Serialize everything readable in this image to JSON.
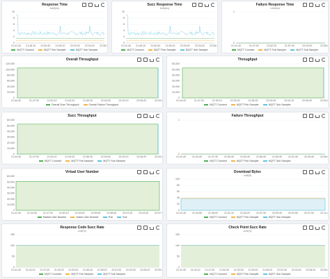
{
  "colors": {
    "connect": "#4caf50",
    "pub": "#f5b342",
    "sub": "#5cc4de",
    "fill_green": "#e3efd9",
    "fill_blue": "#dff1f7",
    "grid": "#eef0f2"
  },
  "toolbar_icons": [
    "maximize-icon",
    "restore-icon",
    "download-icon",
    "refresh-icon"
  ],
  "panels": {
    "response_time": {
      "title": "Response Time",
      "subtitle": "Unit(ms)",
      "yticks": [
        "10",
        "8",
        "6",
        "4",
        "2",
        "0"
      ],
      "xticks": [
        "21:41:40",
        "21:46:10",
        "21:50:40",
        "21:55:10",
        "22:00:00",
        "22:04:20",
        "22:08:10"
      ],
      "legend": [
        "MQTT Connect",
        "MQTT Pub Sampler",
        "MQTT Sub Sampler"
      ]
    },
    "succ_response_time": {
      "title": "Succ Response Time",
      "subtitle": "Unit(ms)",
      "yticks": [
        "10",
        "8",
        "6",
        "4",
        "2",
        "0"
      ],
      "xticks": [
        "21:41:40",
        "21:46:10",
        "21:50:40",
        "21:55:10",
        "22:00:00",
        "22:04:20",
        "22:08:10"
      ],
      "legend": [
        "MQTT Connect",
        "MQTT Pub Sampler",
        "MQTT Sub Sampler"
      ]
    },
    "failure_response_time": {
      "title": "Failure Response Time",
      "subtitle": "Unit(ms)",
      "yticks": [
        "1",
        "0"
      ],
      "xticks": [
        "21:41:40",
        "21:47:00",
        "21:52:20",
        "21:57:40",
        "22:03:00",
        "22:08:20"
      ],
      "legend": [
        "MQTT Connect",
        "MQTT Pub Sampler",
        "MQTT Sub Sampler"
      ]
    },
    "overall_throughput": {
      "title": "Overall Throughput",
      "yticks": [
        "120,000",
        "100,000",
        "80,000",
        "60,000",
        "40,000",
        "20,000",
        "0"
      ],
      "xticks": [
        "21:44:40",
        "21:47:00",
        "21:50:10",
        "21:53:20",
        "21:56:30",
        "22:00:00",
        "22:03:10",
        "22:06:20",
        "22:09:25"
      ],
      "legend": [
        "Overall Succ Throughput",
        "Overall Failure Throughput"
      ]
    },
    "throughput": {
      "title": "Throughput",
      "yticks": [
        "60,000",
        "50,000",
        "40,000",
        "30,000",
        "20,000",
        "10,000",
        "0"
      ],
      "xticks": [
        "21:44:40",
        "21:47:00",
        "21:50:10",
        "21:53:20",
        "21:56:30",
        "22:00:00",
        "22:03:10",
        "22:06:20",
        "22:09:25"
      ],
      "legend": [
        "MQTT Connect",
        "MQTT Pub Sampler",
        "MQTT Sub Sampler"
      ]
    },
    "succ_throughput": {
      "title": "Succ Throughput",
      "yticks": [
        "60,000",
        "50,000",
        "40,000",
        "30,000",
        "20,000",
        "10,000",
        "0"
      ],
      "xticks": [
        "21:44:40",
        "21:47:00",
        "21:50:10",
        "21:53:20",
        "21:56:30",
        "22:00:00",
        "22:03:10",
        "22:06:20",
        "22:09:25"
      ],
      "legend": [
        "MQTT Connect",
        "MQTT Pub Sampler",
        "MQTT Sub Sampler"
      ]
    },
    "failure_throughput": {
      "title": "Failure Throughput",
      "yticks": [
        "1",
        "0"
      ],
      "xticks": [
        "21:41:40",
        "21:44:40",
        "21:47:40",
        "21:50:40",
        "21:53:40",
        "21:56:40",
        "21:59:40",
        "22:02:40",
        "22:05:40",
        "22:08:40"
      ],
      "legend": [
        "MQTT Connect",
        "MQTT Pub Sampler",
        "MQTT Sub Sampler"
      ]
    },
    "virtual_user_number": {
      "title": "Virtual User Number",
      "yticks": [
        "60,000",
        "50,000",
        "40,000",
        "30,000",
        "20,000",
        "10,000",
        "0"
      ],
      "xticks": [
        "21:41:40",
        "21:44:30",
        "21:47:20",
        "21:50:10",
        "21:53:00",
        "21:55:50",
        "21:58:40",
        "22:01:30",
        "22:04:20",
        "22:07:10"
      ],
      "legend": [
        "Started User Number",
        "Active User Number",
        "Pub",
        "Sub"
      ]
    },
    "download_bytes": {
      "title": "Download Bytes",
      "subtitle": "Unit(B)",
      "yticks": [
        "100",
        "80",
        "60",
        "40",
        "20",
        "0"
      ],
      "xticks": [
        "21:41:40",
        "21:44:50",
        "21:48:00",
        "21:51:10",
        "21:54:20",
        "21:57:30",
        "22:00:40",
        "22:03:50",
        "22:07:00",
        "22:11:40"
      ],
      "legend": [
        "MQTT Connect",
        "MQTT Pub Sampler",
        "MQTT Sub Sampler"
      ]
    },
    "response_code_succ_rate": {
      "title": "Response Code Succ Rate",
      "subtitle": "Unit(%)",
      "yticks": [
        "150",
        "100",
        "50",
        "0"
      ],
      "xticks": [
        "21:41:40",
        "21:44:10",
        "21:47:40",
        "21:50:20",
        "21:53:00",
        "21:55:40",
        "21:58:20",
        "22:01:00",
        "22:03:40",
        "22:06:20",
        "22:09:40"
      ],
      "legend": [
        "MQTT Connect",
        "MQTT Pub Sampler",
        "MQTT Sub Sampler"
      ]
    },
    "check_point_succ_rate": {
      "title": "Check Point Succ Rate",
      "subtitle": "Unit(%)",
      "yticks": [
        "150",
        "100",
        "50",
        "0"
      ],
      "xticks": [
        "21:41:40",
        "21:44:10",
        "21:47:40",
        "21:50:20",
        "21:53:00",
        "21:55:40",
        "21:58:20",
        "22:01:00",
        "22:03:40",
        "22:06:20",
        "22:09:40"
      ],
      "legend": [
        "MQTT Connect",
        "MQTT Pub Sampler",
        "MQTT Sub Sampler"
      ]
    }
  }
}
